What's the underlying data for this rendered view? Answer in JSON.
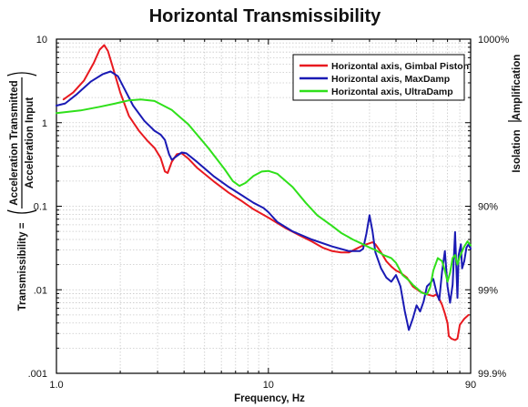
{
  "chart_data": {
    "type": "line",
    "title": "Horizontal Transmissibility",
    "xlabel": "Frequency, Hz",
    "ylabel_left": "Transmissibility =",
    "ylabel_fraction_top": "Acceleration Transmitted",
    "ylabel_fraction_bottom": "Acceleration Input",
    "ylabel_right_upper": "Amplification",
    "ylabel_right_lower": "Isolation",
    "x_scale": "log",
    "y_scale": "log",
    "xlim": [
      1,
      90
    ],
    "ylim": [
      0.001,
      10
    ],
    "grid": true,
    "legend_position": "top-right",
    "x_ticks": [
      {
        "value": 1,
        "label": "1.0"
      },
      {
        "value": 10,
        "label": "10"
      },
      {
        "value": 90,
        "label": "90"
      }
    ],
    "y_ticks_left": [
      {
        "value": 10,
        "label": "10"
      },
      {
        "value": 1,
        "label": "1"
      },
      {
        "value": 0.1,
        "label": "0.1"
      },
      {
        "value": 0.01,
        "label": ".01"
      },
      {
        "value": 0.001,
        "label": ".001"
      }
    ],
    "y_ticks_right": [
      {
        "value": 10,
        "label": "1000%"
      },
      {
        "value": 0.1,
        "label": "90%"
      },
      {
        "value": 0.01,
        "label": "99%"
      },
      {
        "value": 0.001,
        "label": "99.9%"
      }
    ],
    "series": [
      {
        "name": "Horizontal axis, Gimbal Piston",
        "color": "#e8191f",
        "points": [
          [
            1.08,
            1.9
          ],
          [
            1.2,
            2.3
          ],
          [
            1.35,
            3.2
          ],
          [
            1.5,
            5.2
          ],
          [
            1.6,
            7.5
          ],
          [
            1.68,
            8.5
          ],
          [
            1.75,
            7.2
          ],
          [
            1.85,
            4.5
          ],
          [
            2.0,
            2.3
          ],
          [
            2.2,
            1.2
          ],
          [
            2.45,
            0.8
          ],
          [
            2.7,
            0.6
          ],
          [
            2.9,
            0.5
          ],
          [
            3.1,
            0.38
          ],
          [
            3.25,
            0.26
          ],
          [
            3.35,
            0.25
          ],
          [
            3.5,
            0.34
          ],
          [
            3.7,
            0.42
          ],
          [
            3.9,
            0.43
          ],
          [
            4.2,
            0.37
          ],
          [
            4.6,
            0.29
          ],
          [
            5.5,
            0.2
          ],
          [
            6.5,
            0.145
          ],
          [
            7.5,
            0.115
          ],
          [
            8.5,
            0.092
          ],
          [
            10,
            0.073
          ],
          [
            12,
            0.055
          ],
          [
            14,
            0.045
          ],
          [
            16,
            0.038
          ],
          [
            18,
            0.032
          ],
          [
            20,
            0.029
          ],
          [
            22,
            0.028
          ],
          [
            24,
            0.028
          ],
          [
            26,
            0.031
          ],
          [
            28,
            0.034
          ],
          [
            30,
            0.036
          ],
          [
            31,
            0.037
          ],
          [
            32,
            0.035
          ],
          [
            34,
            0.028
          ],
          [
            36,
            0.022
          ],
          [
            38,
            0.019
          ],
          [
            40,
            0.017
          ],
          [
            42,
            0.016
          ],
          [
            45,
            0.014
          ],
          [
            48,
            0.011
          ],
          [
            52,
            0.0095
          ],
          [
            56,
            0.0088
          ],
          [
            60,
            0.0084
          ],
          [
            62,
            0.0088
          ],
          [
            64,
            0.0078
          ],
          [
            66,
            0.0066
          ],
          [
            68,
            0.0052
          ],
          [
            70,
            0.004
          ],
          [
            71,
            0.0028
          ],
          [
            73,
            0.0026
          ],
          [
            76,
            0.0025
          ],
          [
            78,
            0.0026
          ],
          [
            80,
            0.0038
          ],
          [
            84,
            0.0045
          ],
          [
            88,
            0.005
          ]
        ]
      },
      {
        "name": "Horizontal axis, MaxDamp",
        "color": "#1a1ab4",
        "points": [
          [
            1.0,
            1.6
          ],
          [
            1.1,
            1.7
          ],
          [
            1.25,
            2.2
          ],
          [
            1.45,
            3.1
          ],
          [
            1.65,
            3.8
          ],
          [
            1.8,
            4.1
          ],
          [
            1.95,
            3.6
          ],
          [
            2.1,
            2.5
          ],
          [
            2.3,
            1.6
          ],
          [
            2.6,
            1.05
          ],
          [
            2.9,
            0.8
          ],
          [
            3.1,
            0.72
          ],
          [
            3.25,
            0.62
          ],
          [
            3.4,
            0.42
          ],
          [
            3.5,
            0.36
          ],
          [
            3.7,
            0.4
          ],
          [
            3.9,
            0.44
          ],
          [
            4.1,
            0.43
          ],
          [
            4.6,
            0.34
          ],
          [
            5.5,
            0.23
          ],
          [
            6.5,
            0.17
          ],
          [
            7.5,
            0.135
          ],
          [
            8.5,
            0.11
          ],
          [
            9.5,
            0.095
          ],
          [
            10,
            0.085
          ],
          [
            11,
            0.065
          ],
          [
            13,
            0.05
          ],
          [
            16,
            0.04
          ],
          [
            20,
            0.033
          ],
          [
            24,
            0.029
          ],
          [
            27,
            0.029
          ],
          [
            28,
            0.031
          ],
          [
            29,
            0.047
          ],
          [
            30,
            0.078
          ],
          [
            31,
            0.05
          ],
          [
            32,
            0.028
          ],
          [
            34,
            0.018
          ],
          [
            36,
            0.014
          ],
          [
            38,
            0.0125
          ],
          [
            40,
            0.015
          ],
          [
            42,
            0.011
          ],
          [
            44,
            0.0056
          ],
          [
            46,
            0.0033
          ],
          [
            48,
            0.0045
          ],
          [
            50,
            0.0065
          ],
          [
            52,
            0.0055
          ],
          [
            54,
            0.0072
          ],
          [
            56,
            0.011
          ],
          [
            58,
            0.012
          ],
          [
            60,
            0.0135
          ],
          [
            62,
            0.0095
          ],
          [
            64,
            0.0075
          ],
          [
            66,
            0.0165
          ],
          [
            68,
            0.029
          ],
          [
            70,
            0.011
          ],
          [
            72,
            0.007
          ],
          [
            74,
            0.0115
          ],
          [
            76,
            0.049
          ],
          [
            78,
            0.008
          ],
          [
            79,
            0.026
          ],
          [
            81,
            0.035
          ],
          [
            82,
            0.018
          ],
          [
            84,
            0.022
          ],
          [
            86,
            0.032
          ],
          [
            88,
            0.035
          ],
          [
            90,
            0.031
          ]
        ]
      },
      {
        "name": "Horizontal axis, UltraDamp",
        "color": "#2fe01a",
        "points": [
          [
            1.0,
            1.3
          ],
          [
            1.3,
            1.4
          ],
          [
            1.6,
            1.55
          ],
          [
            1.9,
            1.7
          ],
          [
            2.2,
            1.85
          ],
          [
            2.5,
            1.9
          ],
          [
            2.9,
            1.82
          ],
          [
            3.5,
            1.42
          ],
          [
            4.2,
            0.95
          ],
          [
            5.2,
            0.5
          ],
          [
            6.2,
            0.28
          ],
          [
            6.8,
            0.2
          ],
          [
            7.3,
            0.175
          ],
          [
            7.8,
            0.19
          ],
          [
            8.5,
            0.23
          ],
          [
            9.3,
            0.26
          ],
          [
            10,
            0.265
          ],
          [
            11,
            0.245
          ],
          [
            13,
            0.17
          ],
          [
            15,
            0.11
          ],
          [
            17,
            0.078
          ],
          [
            20,
            0.058
          ],
          [
            22,
            0.048
          ],
          [
            25,
            0.04
          ],
          [
            28,
            0.035
          ],
          [
            30,
            0.032
          ],
          [
            32,
            0.03
          ],
          [
            35,
            0.026
          ],
          [
            38,
            0.024
          ],
          [
            40,
            0.021
          ],
          [
            43,
            0.015
          ],
          [
            46,
            0.013
          ],
          [
            48,
            0.0115
          ],
          [
            50,
            0.0105
          ],
          [
            53,
            0.0092
          ],
          [
            56,
            0.0088
          ],
          [
            58,
            0.0108
          ],
          [
            60,
            0.017
          ],
          [
            63,
            0.024
          ],
          [
            66,
            0.022
          ],
          [
            68,
            0.017
          ],
          [
            70,
            0.0125
          ],
          [
            72,
            0.016
          ],
          [
            74,
            0.024
          ],
          [
            76,
            0.026
          ],
          [
            78,
            0.02
          ],
          [
            80,
            0.025
          ],
          [
            84,
            0.033
          ],
          [
            87,
            0.038
          ],
          [
            90,
            0.034
          ]
        ]
      }
    ]
  }
}
